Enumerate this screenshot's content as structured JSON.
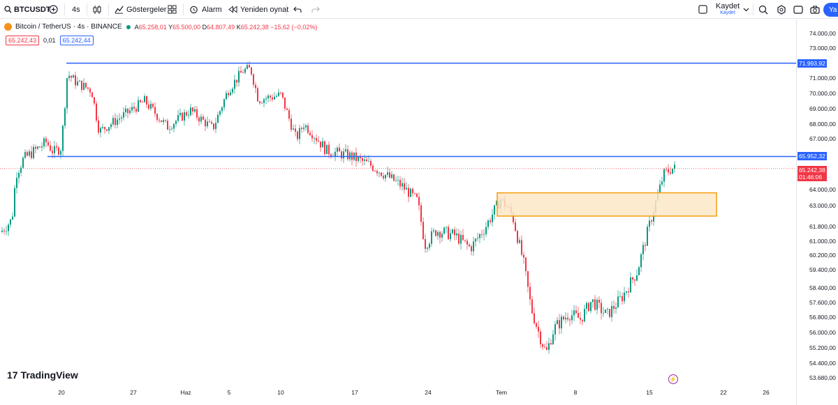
{
  "toolbar": {
    "symbol": "BTCUSDT",
    "interval": "4s",
    "indicators_label": "Göstergeler",
    "alarm_label": "Alarm",
    "replay_label": "Yeniden oynat",
    "save_label": "Kaydet",
    "save_sublabel": "Kaydet",
    "publish_label": "Ya"
  },
  "legend": {
    "title": "Bitcoin / TetherUS · 4s · BINANCE",
    "ohlc": {
      "open_key": "A",
      "open": "65.258,01",
      "high_key": "Y",
      "high": "65.500,00",
      "low_key": "D",
      "low": "64.807,49",
      "close_key": "K",
      "close": "65.242,38",
      "change": "−15,62 (−0,02%)"
    },
    "bid": "65.242,43",
    "spread": "0,01",
    "ask": "65.242,44"
  },
  "price_axis": {
    "labels": [
      "74.000,00",
      "73.000,00",
      "71.000,00",
      "70.000,00",
      "69.000,00",
      "68.000,00",
      "67.000,00",
      "64.000,00",
      "63.000,00",
      "61.800,00",
      "61.000,00",
      "60.200,00",
      "59.400,00",
      "58.400,00",
      "57.600,00",
      "56.800,00",
      "56.000,00",
      "55.200,00",
      "54.400,00",
      "53.680,00"
    ],
    "tag_resistance": "71.993,92",
    "tag_support": "65.952,32",
    "tag_last": "65.242,38",
    "tag_countdown": "01:46:06"
  },
  "time_axis": {
    "labels": [
      "20",
      "27",
      "Haz",
      "5",
      "10",
      "17",
      "24",
      "Tem",
      "8",
      "15",
      "22",
      "26"
    ]
  },
  "logo_text": "TradingView",
  "colors": {
    "up": "#089981",
    "down": "#f23645",
    "level_line": "#2962ff",
    "zone_fill": "#fde8c8",
    "zone_border": "#f59e0b"
  },
  "chart_data": {
    "type": "candlestick",
    "symbol": "BTCUSDT",
    "interval": "4s",
    "ylim": [
      53500,
      74500
    ],
    "resistance_level": 71993.92,
    "support_level": 65952.32,
    "last_price": 65242.38,
    "demand_zone": {
      "from": 62400,
      "to": 63800
    },
    "path": [
      {
        "t": 0,
        "p": 61500
      },
      {
        "t": 0.015,
        "p": 62200
      },
      {
        "t": 0.02,
        "p": 64900
      },
      {
        "t": 0.03,
        "p": 65800
      },
      {
        "t": 0.045,
        "p": 66300
      },
      {
        "t": 0.06,
        "p": 66800
      },
      {
        "t": 0.07,
        "p": 66200
      },
      {
        "t": 0.08,
        "p": 66500
      },
      {
        "t": 0.088,
        "p": 71300
      },
      {
        "t": 0.1,
        "p": 70700
      },
      {
        "t": 0.12,
        "p": 70200
      },
      {
        "t": 0.13,
        "p": 67500
      },
      {
        "t": 0.16,
        "p": 68500
      },
      {
        "t": 0.19,
        "p": 69500
      },
      {
        "t": 0.22,
        "p": 67800
      },
      {
        "t": 0.25,
        "p": 68900
      },
      {
        "t": 0.28,
        "p": 67700
      },
      {
        "t": 0.3,
        "p": 70200
      },
      {
        "t": 0.32,
        "p": 71500
      },
      {
        "t": 0.33,
        "p": 71600
      },
      {
        "t": 0.34,
        "p": 69600
      },
      {
        "t": 0.37,
        "p": 69900
      },
      {
        "t": 0.39,
        "p": 67000
      },
      {
        "t": 0.4,
        "p": 68000
      },
      {
        "t": 0.43,
        "p": 66300
      },
      {
        "t": 0.46,
        "p": 66000
      },
      {
        "t": 0.49,
        "p": 65400
      },
      {
        "t": 0.51,
        "p": 64800
      },
      {
        "t": 0.53,
        "p": 64200
      },
      {
        "t": 0.55,
        "p": 63300
      },
      {
        "t": 0.56,
        "p": 60800
      },
      {
        "t": 0.575,
        "p": 61600
      },
      {
        "t": 0.6,
        "p": 61300
      },
      {
        "t": 0.62,
        "p": 60600
      },
      {
        "t": 0.64,
        "p": 61800
      },
      {
        "t": 0.66,
        "p": 63400
      },
      {
        "t": 0.675,
        "p": 62500
      },
      {
        "t": 0.69,
        "p": 59800
      },
      {
        "t": 0.7,
        "p": 57300
      },
      {
        "t": 0.71,
        "p": 56000
      },
      {
        "t": 0.72,
        "p": 54900
      },
      {
        "t": 0.73,
        "p": 56200
      },
      {
        "t": 0.75,
        "p": 57000
      },
      {
        "t": 0.765,
        "p": 56700
      },
      {
        "t": 0.78,
        "p": 57700
      },
      {
        "t": 0.8,
        "p": 56900
      },
      {
        "t": 0.82,
        "p": 57900
      },
      {
        "t": 0.84,
        "p": 59300
      },
      {
        "t": 0.86,
        "p": 62500
      },
      {
        "t": 0.875,
        "p": 64900
      },
      {
        "t": 0.885,
        "p": 65242
      }
    ]
  }
}
